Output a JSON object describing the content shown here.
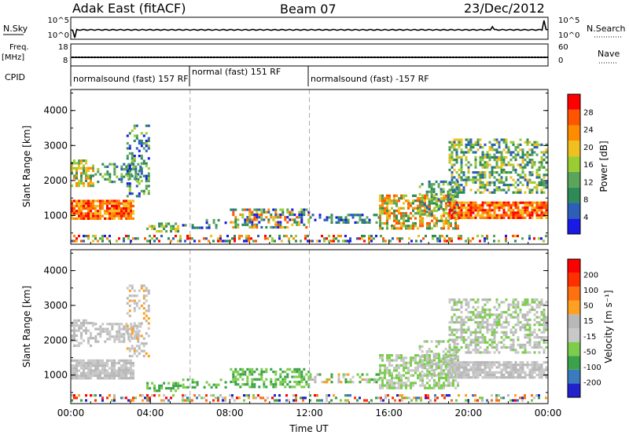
{
  "header": {
    "title_left": "Adak East (fitACF)",
    "title_center": "Beam 07",
    "title_right": "23/Dec/2012"
  },
  "strips": {
    "nsky_label": "N.Sky",
    "nsky_ticks": [
      "10^5",
      "10^0"
    ],
    "nsearch_label": "N.Search",
    "nsearch_ticks": [
      "10^5",
      "10^0"
    ],
    "freq_label_1": "Freq.",
    "freq_label_2": "[MHz]",
    "freq_ticks": [
      "18",
      "8"
    ],
    "nave_label": "Nave",
    "nave_ticks": [
      "60",
      "0"
    ],
    "cpid_label": "CPID",
    "cpid_segments": [
      {
        "text": "normalsound (fast) 157 RF",
        "start_hour": 0
      },
      {
        "text": "normal (fast) 151 RF",
        "start_hour": 6.0
      },
      {
        "text": "normalsound (fast) -157 RF",
        "start_hour": 12.0
      }
    ]
  },
  "colors": {
    "power": [
      "#1a1ae6",
      "#2b5fb8",
      "#2e8b57",
      "#5aa55a",
      "#9acd32",
      "#f0c020",
      "#ff8c00",
      "#ff5500",
      "#ff0000"
    ],
    "velocity": [
      "#2222cc",
      "#3a7bbf",
      "#3aa34a",
      "#7ccd4c",
      "#c8c8c8",
      "#b8b8b8",
      "#ffa020",
      "#ff7010",
      "#ff3000",
      "#ff0000"
    ]
  },
  "chart_data": [
    {
      "type": "heatmap",
      "name": "power",
      "xlabel": "",
      "ylabel": "Slant Range [km]",
      "x_range_hours": [
        0,
        24
      ],
      "ylim": [
        180,
        4600
      ],
      "y_ticks": [
        1000,
        2000,
        3000,
        4000
      ],
      "colorbar_label": "Power [dB]",
      "colorbar_ticks": [
        "4",
        "8",
        "12",
        "16",
        "20",
        "24",
        "28"
      ],
      "colorbar_range": [
        0,
        32
      ]
    },
    {
      "type": "heatmap",
      "name": "velocity",
      "xlabel": "Time UT",
      "ylabel": "Slant Range [km]",
      "x_ticks": [
        "00:00",
        "04:00",
        "08:00",
        "12:00",
        "16:00",
        "20:00",
        "00:00"
      ],
      "x_range_hours": [
        0,
        24
      ],
      "ylim": [
        180,
        4600
      ],
      "y_ticks": [
        1000,
        2000,
        3000,
        4000
      ],
      "colorbar_label": "Velocity [m s⁻¹]",
      "colorbar_ticks": [
        "-200",
        "-100",
        "-50",
        "-15",
        "15",
        "50",
        "100",
        "200"
      ]
    }
  ]
}
